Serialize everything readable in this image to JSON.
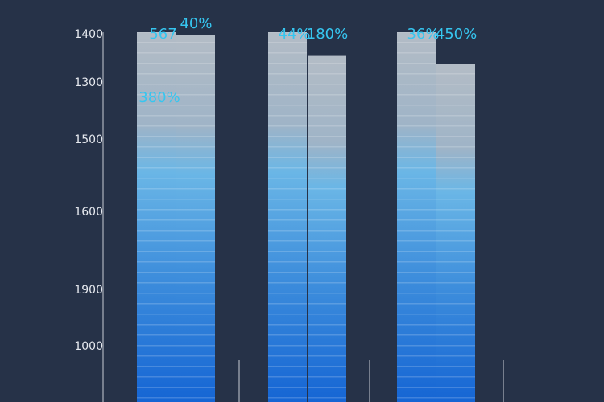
{
  "chart_data": {
    "type": "bar",
    "title": "",
    "xlabel": "",
    "ylabel": "",
    "categories": [
      "",
      "",
      ""
    ],
    "series": [
      {
        "values": [
          1400,
          1400,
          1400
        ]
      },
      {
        "values": [
          1390,
          1310,
          1280
        ]
      }
    ],
    "y_ticks": [
      "1400",
      "1300",
      "1500",
      "1600",
      "1900",
      "1000",
      ""
    ],
    "data_labels": [
      [
        "567",
        "40%"
      ],
      [
        "44%",
        "180%"
      ],
      [
        "36%",
        "450%"
      ]
    ],
    "extra_labels": [
      {
        "group": 0,
        "text": "380%"
      }
    ],
    "grid": false,
    "legend": "none",
    "colors": {
      "background": "#263248",
      "bar_bottom": "#1565d4",
      "bar_mid": "#5ca9e0",
      "bar_top": "#aeb7c2",
      "label": "#36c6f0",
      "tick": "#e6e9ef",
      "axis": "#c8ccd4"
    }
  }
}
